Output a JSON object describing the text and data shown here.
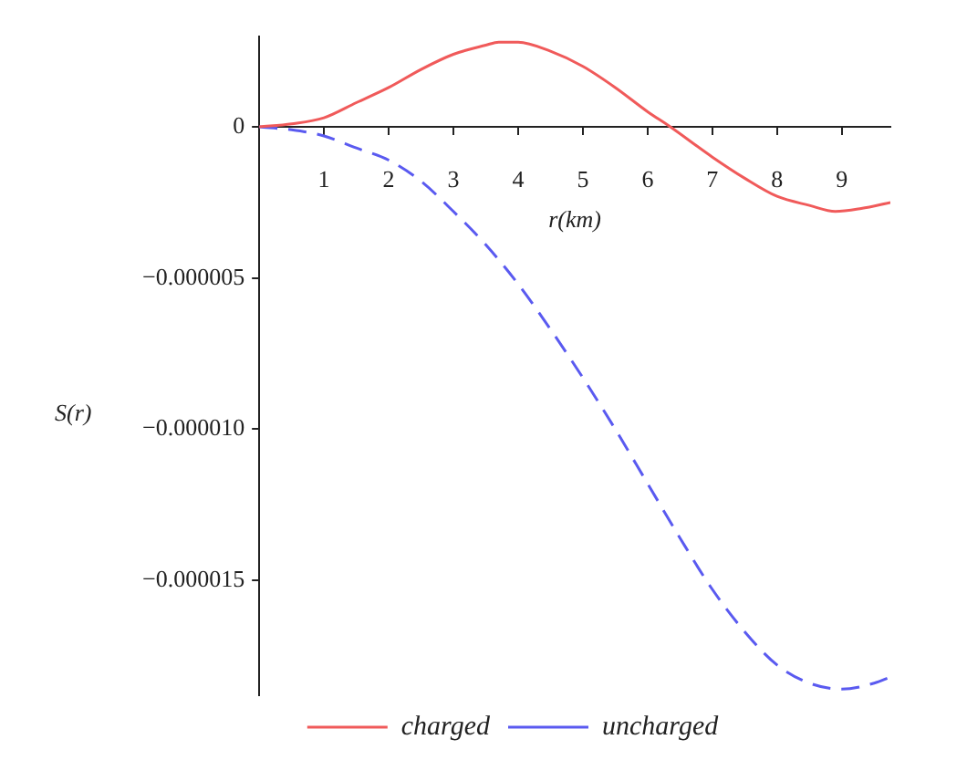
{
  "chart_data": {
    "type": "line",
    "xlabel": "r(km)",
    "ylabel": "S(r)",
    "xlim": [
      0,
      9.75
    ],
    "xticks": [
      1,
      2,
      3,
      4,
      5,
      6,
      7,
      8,
      9
    ],
    "ylim": [
      -1.88e-05,
      3e-06
    ],
    "yticks": [
      0,
      {
        "value": -5e-06,
        "label": "−0.000005"
      },
      {
        "value": -1e-05,
        "label": "−0.000010"
      },
      {
        "value": -1.5e-05,
        "label": "−0.000015"
      }
    ],
    "grid": false,
    "legend": "bottom",
    "marker": "none",
    "x": [
      0,
      0.5,
      1,
      1.5,
      2,
      2.5,
      3,
      3.5,
      3.7,
      4,
      4.5,
      5,
      5.5,
      6,
      6.35,
      7,
      7.5,
      8,
      8.5,
      8.9,
      9.3,
      9.75
    ],
    "series": [
      {
        "name": "charged",
        "color": "#f05a5a",
        "line_style": "solid",
        "values": [
          0,
          1e-07,
          3e-07,
          8e-07,
          1.3e-06,
          1.9e-06,
          2.4e-06,
          2.7e-06,
          2.8e-06,
          2.8e-06,
          2.5e-06,
          2e-06,
          1.3e-06,
          5e-07,
          0,
          -1e-06,
          -1.7e-06,
          -2.3e-06,
          -2.6e-06,
          -2.8e-06,
          -2.7e-06,
          -2.5e-06
        ]
      },
      {
        "name": "uncharged",
        "color": "#5a5af0",
        "line_style": "dashed",
        "x": [
          0,
          0.5,
          1,
          1.5,
          2,
          2.5,
          3,
          3.5,
          4,
          4.5,
          5,
          5.5,
          6,
          6.5,
          7,
          7.5,
          8,
          8.5,
          9,
          9.5,
          9.75
        ],
        "values": [
          0,
          -1e-07,
          -3e-07,
          -7e-07,
          -1.1e-06,
          -1.8e-06,
          -2.8e-06,
          -3.9e-06,
          -5.2e-06,
          -6.7e-06,
          -8.3e-06,
          -1e-05,
          -1.18e-05,
          -1.36e-05,
          -1.53e-05,
          -1.67e-05,
          -1.78e-05,
          -1.84e-05,
          -1.86e-05,
          -1.84e-05,
          -1.82e-05
        ]
      }
    ]
  }
}
